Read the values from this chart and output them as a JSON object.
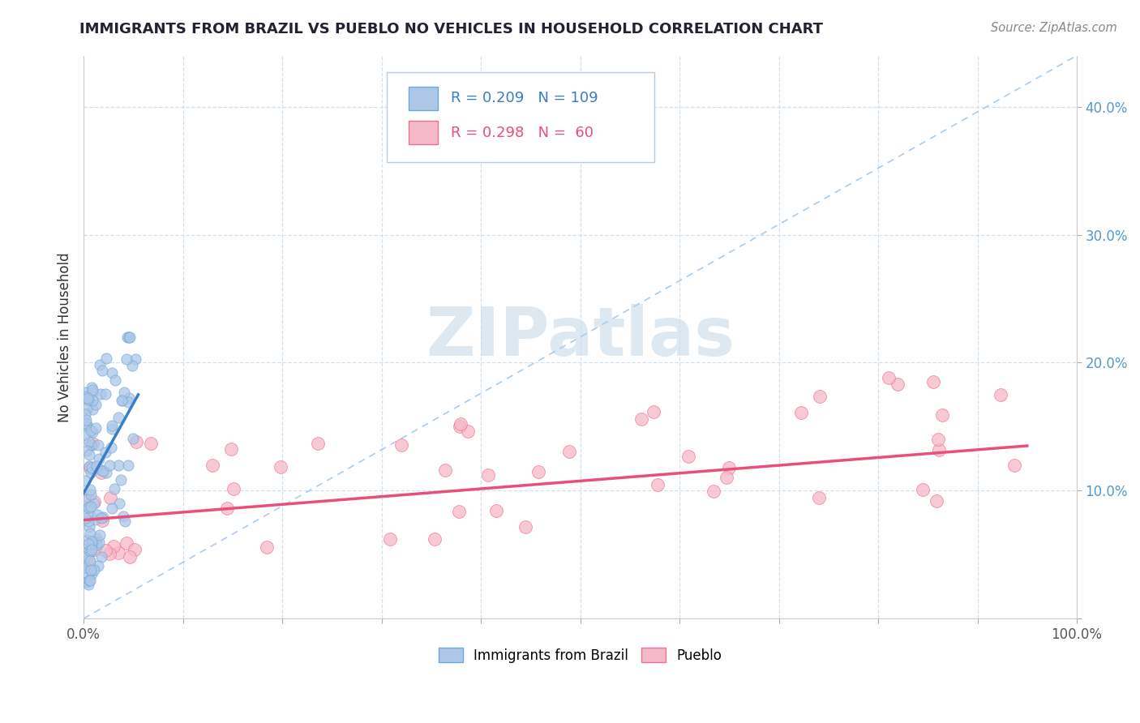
{
  "title": "IMMIGRANTS FROM BRAZIL VS PUEBLO NO VEHICLES IN HOUSEHOLD CORRELATION CHART",
  "source": "Source: ZipAtlas.com",
  "ylabel": "No Vehicles in Household",
  "xlim": [
    0.0,
    1.0
  ],
  "ylim": [
    0.0,
    0.44
  ],
  "brazil_color": "#aec6e8",
  "pueblo_color": "#f5b8c8",
  "brazil_edge_color": "#6aaad4",
  "pueblo_edge_color": "#f07090",
  "brazil_line_color": "#3a7ec4",
  "pueblo_line_color": "#e8507a",
  "ref_line_color": "#aaccee",
  "brazil_R": 0.209,
  "brazil_N": 109,
  "pueblo_R": 0.298,
  "pueblo_N": 60,
  "watermark_color": "#dde8f0",
  "brazil_trend_x0": 0.0,
  "brazil_trend_y0": 0.098,
  "brazil_trend_x1": 0.055,
  "brazil_trend_y1": 0.175,
  "pueblo_trend_x0": 0.0,
  "pueblo_trend_y0": 0.077,
  "pueblo_trend_x1": 0.95,
  "pueblo_trend_y1": 0.135
}
